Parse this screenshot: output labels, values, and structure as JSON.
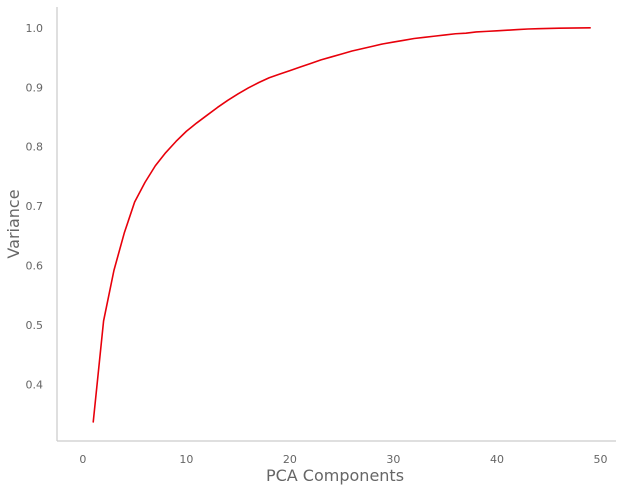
{
  "chart_data": {
    "type": "line",
    "title": "",
    "xlabel": "PCA Components",
    "ylabel": "Variance",
    "xlim": [
      -2.5,
      51.5
    ],
    "ylim": [
      0.305,
      1.035
    ],
    "xticks": [
      0,
      10,
      20,
      30,
      40,
      50
    ],
    "xtick_labels": [
      "0",
      "10",
      "20",
      "30",
      "40",
      "50"
    ],
    "yticks": [
      0.4,
      0.5,
      0.6,
      0.7,
      0.8,
      0.9,
      1.0
    ],
    "ytick_labels": [
      "0.4",
      "0.5",
      "0.6",
      "0.7",
      "0.8",
      "0.9",
      "1.0"
    ],
    "grid": false,
    "line_color": "#e8000b",
    "x": [
      1,
      2,
      3,
      4,
      5,
      6,
      7,
      8,
      9,
      10,
      11,
      12,
      13,
      14,
      15,
      16,
      17,
      18,
      19,
      20,
      21,
      22,
      23,
      24,
      25,
      26,
      27,
      28,
      29,
      30,
      31,
      32,
      33,
      34,
      35,
      36,
      37,
      38,
      39,
      40,
      41,
      42,
      43,
      44,
      45,
      46,
      47,
      48,
      49
    ],
    "series": [
      {
        "values": [
          0.337,
          0.507,
          0.592,
          0.655,
          0.707,
          0.74,
          0.768,
          0.79,
          0.809,
          0.826,
          0.84,
          0.853,
          0.866,
          0.878,
          0.889,
          0.899,
          0.908,
          0.916,
          0.922,
          0.928,
          0.934,
          0.94,
          0.946,
          0.951,
          0.956,
          0.961,
          0.965,
          0.969,
          0.973,
          0.976,
          0.979,
          0.982,
          0.984,
          0.986,
          0.988,
          0.99,
          0.991,
          0.993,
          0.994,
          0.995,
          0.996,
          0.997,
          0.998,
          0.9985,
          0.999,
          0.9993,
          0.9996,
          0.9998,
          1.0
        ]
      }
    ]
  }
}
